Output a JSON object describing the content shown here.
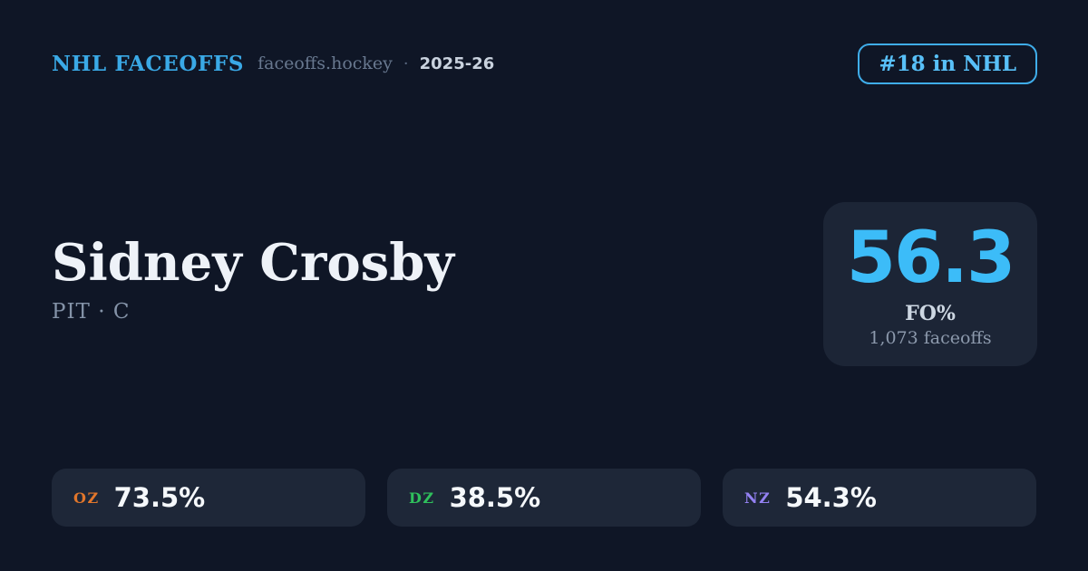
{
  "header": {
    "brand": "NHL FACEOFFS",
    "domain": "faceoffs.hockey",
    "separator": "·",
    "season": "2025-26",
    "rank_badge": "#18 in NHL"
  },
  "player": {
    "name": "Sidney Crosby",
    "team_position": "PIT · C"
  },
  "fo_card": {
    "value": "56.3",
    "label": "FO%",
    "sublabel": "1,073 faceoffs"
  },
  "zones": [
    {
      "label": "OZ",
      "value": "73.5%",
      "color": "#e2762b"
    },
    {
      "label": "DZ",
      "value": "38.5%",
      "color": "#2fc05c"
    },
    {
      "label": "NZ",
      "value": "54.3%",
      "color": "#9381f2"
    }
  ],
  "colors": {
    "background": "#0f1626",
    "card": "#1c2536",
    "pill": "#1e2738",
    "accent": "#3cbcf8",
    "accent_border": "#3fadea",
    "brand": "#3aa9e6"
  }
}
